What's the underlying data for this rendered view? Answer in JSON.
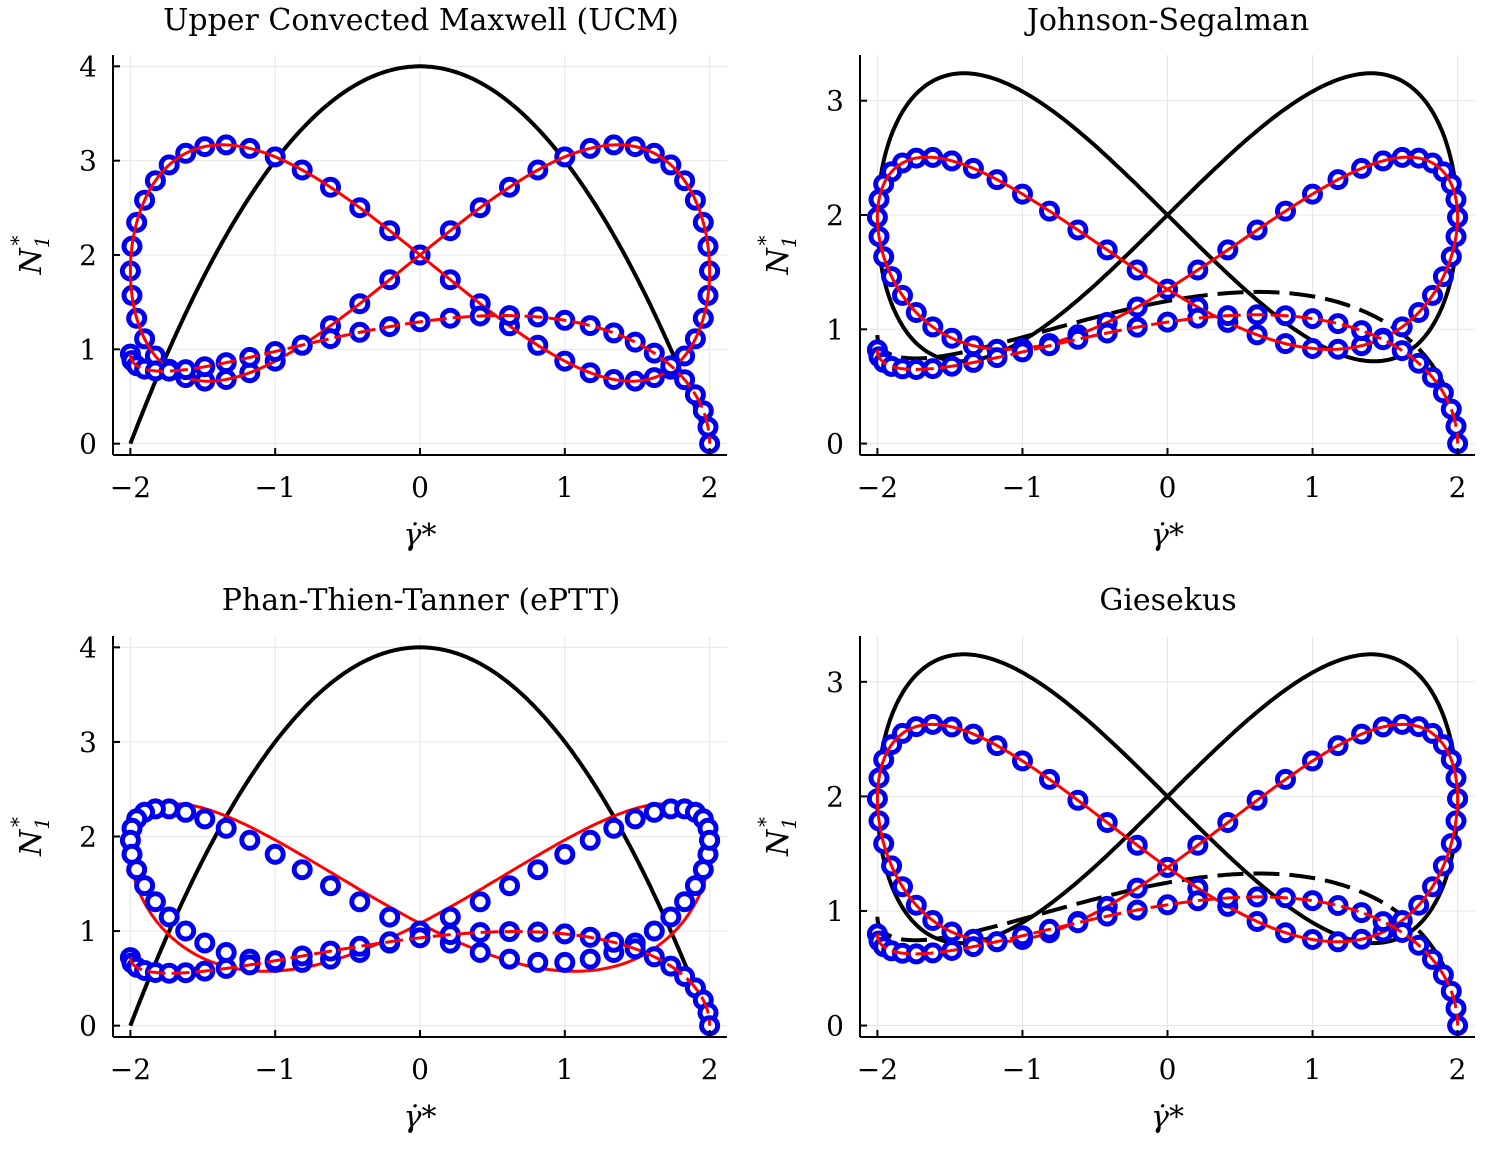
{
  "figure": {
    "colors": {
      "black": "#000000",
      "blue": "#0000ee",
      "red": "#ff0000",
      "grid": "#e6e6e6"
    }
  },
  "chart_data": [
    {
      "type": "line",
      "title": "Upper Convected Maxwell (UCM)",
      "xlabel": "γ̇*",
      "ylabel_main": "N",
      "ylabel_sub": "1",
      "ylabel_sup": "*",
      "xlim": [
        -2.12,
        2.12
      ],
      "ylim": [
        -0.12,
        4.12
      ],
      "xticks": [
        -2,
        -1,
        0,
        1,
        2
      ],
      "xtick_labels": [
        "−2",
        "−1",
        "0",
        "1",
        "2"
      ],
      "yticks": [
        0,
        1,
        2,
        3,
        4
      ],
      "ytick_labels": [
        "0",
        "1",
        "2",
        "3",
        "4"
      ],
      "series": [
        {
          "name": "reference (black)",
          "style": "black-solid",
          "curve": "parabola",
          "peak": 4.0
        },
        {
          "name": "blue circles, lobes",
          "style": "blue-circles",
          "curve": "figure8",
          "params": {
            "A": 1.83,
            "B": 1.25,
            "C": 2.0,
            "T": 0.015
          },
          "n": 60
        },
        {
          "name": "red, lobes",
          "style": "red-solid",
          "curve": "figure8",
          "params": {
            "A": 1.83,
            "B": 1.25,
            "C": 2.0,
            "T": 0.015
          }
        },
        {
          "name": "blue circles, lower",
          "style": "blue-circles",
          "curve": "skew",
          "params": {
            "M": 0.95,
            "a": 0.55,
            "b": 0.35,
            "ph": 0.9
          },
          "n": 30
        },
        {
          "name": "red, lower",
          "style": "red-dashed",
          "curve": "skew",
          "params": {
            "M": 0.95,
            "a": 0.55,
            "b": 0.35,
            "ph": 0.9
          }
        }
      ]
    },
    {
      "type": "line",
      "title": "Johnson-Segalman",
      "xlabel": "γ̇*",
      "ylabel_main": "N",
      "ylabel_sub": "1",
      "ylabel_sup": "*",
      "xlim": [
        -2.12,
        2.12
      ],
      "ylim": [
        -0.1,
        3.4
      ],
      "xticks": [
        -2,
        -1,
        0,
        1,
        2
      ],
      "xtick_labels": [
        "−2",
        "−1",
        "0",
        "1",
        "2"
      ],
      "yticks": [
        0,
        1,
        2,
        3
      ],
      "ytick_labels": [
        "0",
        "1",
        "2",
        "3"
      ],
      "series": [
        {
          "name": "black, lobes",
          "style": "black-solid",
          "curve": "figure8",
          "params": {
            "A": 1.96,
            "B": 1.26,
            "C": 2.0,
            "T": 0.015
          }
        },
        {
          "name": "black, lower",
          "style": "black-dashed",
          "curve": "skew",
          "params": {
            "M": 0.95,
            "a": 0.55,
            "b": 0.45,
            "ph": 1.0
          }
        },
        {
          "name": "blue circles, lobes",
          "style": "blue-circles",
          "curve": "figure8",
          "params": {
            "A": 1.98,
            "B": 0.78,
            "C": 1.35,
            "T": 0.012
          },
          "n": 60
        },
        {
          "name": "red, lobes",
          "style": "red-solid",
          "curve": "figure8",
          "params": {
            "A": 1.98,
            "B": 0.78,
            "C": 1.35,
            "T": 0.012
          }
        },
        {
          "name": "blue circles, lower",
          "style": "blue-circles",
          "curve": "skew",
          "params": {
            "M": 0.82,
            "a": 0.45,
            "b": 0.32,
            "ph": 1.0
          },
          "n": 30
        },
        {
          "name": "red, lower",
          "style": "red-dashed",
          "curve": "skew",
          "params": {
            "M": 0.82,
            "a": 0.45,
            "b": 0.32,
            "ph": 1.0
          }
        }
      ]
    },
    {
      "type": "line",
      "title": "Phan-Thien-Tanner (ePTT)",
      "xlabel": "γ̇*",
      "ylabel_main": "N",
      "ylabel_sub": "1",
      "ylabel_sup": "*",
      "xlim": [
        -2.12,
        2.12
      ],
      "ylim": [
        -0.12,
        4.12
      ],
      "xticks": [
        -2,
        -1,
        0,
        1,
        2
      ],
      "xtick_labels": [
        "−2",
        "−1",
        "0",
        "1",
        "2"
      ],
      "yticks": [
        0,
        1,
        2,
        3,
        4
      ],
      "ytick_labels": [
        "0",
        "1",
        "2",
        "3",
        "4"
      ],
      "series": [
        {
          "name": "reference (black)",
          "style": "black-solid",
          "curve": "parabola",
          "peak": 4.0
        },
        {
          "name": "red, lobes",
          "style": "red-solid",
          "curve": "figure8",
          "params": {
            "A": 1.84,
            "B": 0.8,
            "C": 1.08,
            "T": 0.01
          }
        },
        {
          "name": "blue circles, lobes",
          "style": "blue-circles",
          "curve": "figure8",
          "params": {
            "A": 1.96,
            "B": 0.66,
            "C": 1.0,
            "T": 0.01
          },
          "n": 60
        },
        {
          "name": "blue circles, lower",
          "style": "blue-circles",
          "curve": "skew",
          "params": {
            "M": 0.72,
            "a": 0.42,
            "b": 0.3,
            "ph": 1.05
          },
          "n": 30
        },
        {
          "name": "red, lower",
          "style": "red-dashed",
          "curve": "skew",
          "params": {
            "M": 0.72,
            "a": 0.42,
            "b": 0.3,
            "ph": 1.05
          }
        }
      ]
    },
    {
      "type": "line",
      "title": "Giesekus",
      "xlabel": "γ̇*",
      "ylabel_main": "N",
      "ylabel_sub": "1",
      "ylabel_sup": "*",
      "xlim": [
        -2.12,
        2.12
      ],
      "ylim": [
        -0.1,
        3.4
      ],
      "xticks": [
        -2,
        -1,
        0,
        1,
        2
      ],
      "xtick_labels": [
        "−2",
        "−1",
        "0",
        "1",
        "2"
      ],
      "yticks": [
        0,
        1,
        2,
        3
      ],
      "ytick_labels": [
        "0",
        "1",
        "2",
        "3"
      ],
      "series": [
        {
          "name": "black, lobes",
          "style": "black-solid",
          "curve": "figure8",
          "params": {
            "A": 1.96,
            "B": 1.26,
            "C": 2.0,
            "T": 0.015
          }
        },
        {
          "name": "black, lower",
          "style": "black-dashed",
          "curve": "skew",
          "params": {
            "M": 0.95,
            "a": 0.55,
            "b": 0.45,
            "ph": 1.0
          }
        },
        {
          "name": "blue circles, lobes",
          "style": "blue-circles",
          "curve": "figure8",
          "params": {
            "A": 1.98,
            "B": 0.9,
            "C": 1.38,
            "T": 0.012
          },
          "n": 60
        },
        {
          "name": "red, lobes",
          "style": "red-solid",
          "curve": "figure8",
          "params": {
            "A": 1.98,
            "B": 0.9,
            "C": 1.38,
            "T": 0.012
          }
        },
        {
          "name": "blue circles, lower",
          "style": "blue-circles",
          "curve": "skew",
          "params": {
            "M": 0.8,
            "a": 0.47,
            "b": 0.32,
            "ph": 1.0
          },
          "n": 30
        },
        {
          "name": "red, lower",
          "style": "red-dashed",
          "curve": "skew",
          "params": {
            "M": 0.8,
            "a": 0.47,
            "b": 0.32,
            "ph": 1.0
          }
        }
      ]
    }
  ]
}
